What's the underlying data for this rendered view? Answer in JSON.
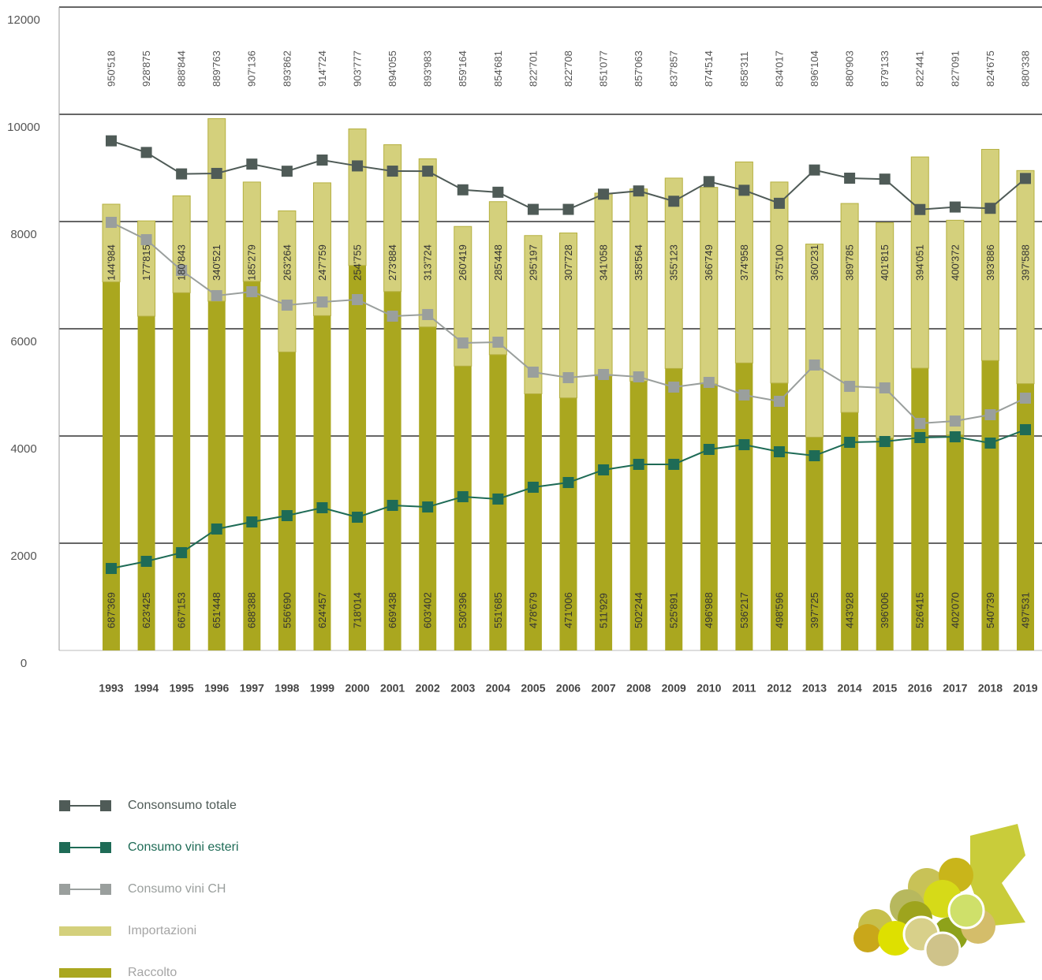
{
  "chart_data": {
    "type": "bar",
    "stacked": true,
    "categories": [
      "1993",
      "1994",
      "1995",
      "1996",
      "1997",
      "1998",
      "1999",
      "2000",
      "2001",
      "2002",
      "2003",
      "2004",
      "2005",
      "2006",
      "2007",
      "2008",
      "2009",
      "2010",
      "2011",
      "2012",
      "2013",
      "2014",
      "2015",
      "2016",
      "2017",
      "2018",
      "2019"
    ],
    "ylim": [
      0,
      12000
    ],
    "yticks": [
      0,
      2000,
      4000,
      6000,
      8000,
      10000,
      12000
    ],
    "grid": true,
    "legend": "bottom-left",
    "series": [
      {
        "name": "Consonsumo totale",
        "type": "line",
        "color": "#4f5b57",
        "values": [
          9505.18,
          9288.75,
          8888.44,
          8897.63,
          9071.36,
          8938.62,
          9147.24,
          9037.77,
          8940.55,
          8939.83,
          8591.64,
          8546.81,
          8227.01,
          8227.08,
          8510.77,
          8570.63,
          8378.57,
          8745.14,
          8583.11,
          8340.17,
          8961.04,
          8809.03,
          8791.33,
          8224.41,
          8270.91,
          8246.75,
          8803.38
        ],
        "value_labels": [
          "950'518",
          "928'875",
          "888'844",
          "889'763",
          "907'136",
          "893'862",
          "914'724",
          "903'777",
          "894'055",
          "893'983",
          "859'164",
          "854'681",
          "822'701",
          "822'708",
          "851'077",
          "857'063",
          "837'857",
          "874'514",
          "858'311",
          "834'017",
          "896'104",
          "880'903",
          "879'133",
          "822'441",
          "827'091",
          "824'675",
          "880'338"
        ]
      },
      {
        "name": "Consumo vini esteri",
        "type": "line",
        "color": "#1e6b56",
        "values": [
          1529,
          1662,
          1824,
          2265,
          2397,
          2515,
          2662,
          2485,
          2706,
          2676,
          2868,
          2824,
          3044,
          3132,
          3368,
          3471,
          3471,
          3750,
          3838,
          3706,
          3632,
          3882,
          3897,
          3971,
          3985,
          3868,
          4118
        ]
      },
      {
        "name": "Consumo vini CH",
        "type": "line",
        "color": "#9a9f9d",
        "values": [
          7985,
          7662,
          7088,
          6618,
          6691,
          6441,
          6500,
          6544,
          6235,
          6265,
          5735,
          5750,
          5191,
          5088,
          5147,
          5103,
          4912,
          5000,
          4765,
          4647,
          5324,
          4926,
          4897,
          4235,
          4279,
          4397,
          4706
        ]
      },
      {
        "name": "Importazioni",
        "type": "bar",
        "color": "#d4d07c",
        "values": [
          1449.84,
          1778.15,
          1808.43,
          3405.21,
          1852.79,
          2632.64,
          2477.59,
          2547.55,
          2738.84,
          3137.24,
          2604.19,
          2854.48,
          2951.97,
          3077.28,
          3410.58,
          3585.64,
          3551.23,
          3667.49,
          3749.58,
          3751,
          3602.31,
          3897.85,
          4018.15,
          3940.51,
          4003.72,
          3938.86,
          3975.88
        ],
        "value_labels": [
          "144'984",
          "177'815",
          "180'843",
          "340'521",
          "185'279",
          "263'264",
          "247'759",
          "254'755",
          "273'884",
          "313'724",
          "260'419",
          "285'448",
          "295'197",
          "307'728",
          "341'058",
          "358'564",
          "355'123",
          "366'749",
          "374'958",
          "375'100",
          "360'231",
          "389'785",
          "401'815",
          "394'051",
          "400'372",
          "393'886",
          "397'588"
        ]
      },
      {
        "name": "Raccolto",
        "type": "bar",
        "color": "#aaa71f",
        "values": [
          6873.69,
          6234.25,
          6671.53,
          6514.48,
          6883.88,
          5566.9,
          6244.57,
          7180.14,
          6694.38,
          6034.02,
          5303.96,
          5516.85,
          4786.79,
          4710.06,
          5119.29,
          5022.44,
          5258.91,
          4969.88,
          5362.17,
          4985.96,
          3977.25,
          4439.28,
          3960.06,
          5264.15,
          4020.7,
          5407.39,
          4975.31
        ],
        "value_labels": [
          "687'369",
          "623'425",
          "667'153",
          "651'448",
          "688'388",
          "556'690",
          "624'457",
          "718'014",
          "669'438",
          "603'402",
          "530'396",
          "551'685",
          "478'679",
          "471'006",
          "511'929",
          "502'244",
          "525'891",
          "496'988",
          "536'217",
          "498'596",
          "397'725",
          "443'928",
          "396'006",
          "526'415",
          "402'070",
          "540'739",
          "497'531"
        ]
      }
    ]
  }
}
